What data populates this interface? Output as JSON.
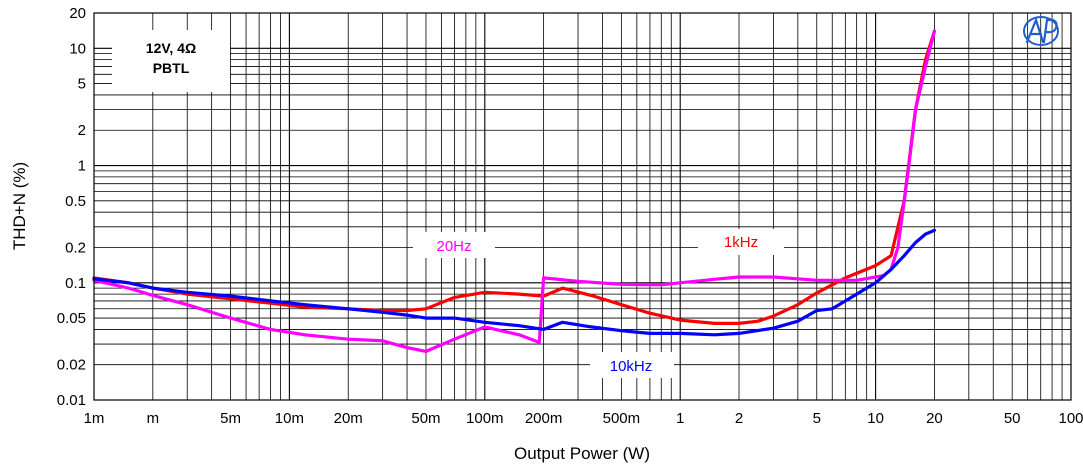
{
  "chart_data": {
    "type": "line",
    "title": "",
    "xlabel": "Output Power (W)",
    "ylabel": "THD+N (%)",
    "x_scale": "log",
    "y_scale": "log",
    "xlim": [
      0.001,
      100
    ],
    "ylim": [
      0.01,
      20
    ],
    "grid": true,
    "x_ticks": [
      {
        "value": 0.001,
        "label": "1m"
      },
      {
        "value": 0.002,
        "label": "m"
      },
      {
        "value": 0.005,
        "label": "5m"
      },
      {
        "value": 0.01,
        "label": "10m"
      },
      {
        "value": 0.02,
        "label": "20m"
      },
      {
        "value": 0.05,
        "label": "50m"
      },
      {
        "value": 0.1,
        "label": "100m"
      },
      {
        "value": 0.2,
        "label": "200m"
      },
      {
        "value": 0.5,
        "label": "500m"
      },
      {
        "value": 1,
        "label": "1"
      },
      {
        "value": 2,
        "label": "2"
      },
      {
        "value": 5,
        "label": "5"
      },
      {
        "value": 10,
        "label": "10"
      },
      {
        "value": 20,
        "label": "20"
      },
      {
        "value": 50,
        "label": "50"
      },
      {
        "value": 100,
        "label": "100"
      }
    ],
    "y_ticks": [
      {
        "value": 20,
        "label": "20"
      },
      {
        "value": 10,
        "label": "10"
      },
      {
        "value": 5,
        "label": "5"
      },
      {
        "value": 2,
        "label": "2"
      },
      {
        "value": 1,
        "label": "1"
      },
      {
        "value": 0.5,
        "label": "0.5"
      },
      {
        "value": 0.2,
        "label": "0.2"
      },
      {
        "value": 0.1,
        "label": "0.1"
      },
      {
        "value": 0.05,
        "label": "0.05"
      },
      {
        "value": 0.02,
        "label": "0.02"
      },
      {
        "value": 0.01,
        "label": "0.01"
      }
    ],
    "condition_box": {
      "line1": "12V, 4Ω",
      "line2": "PBTL"
    },
    "logo_text": "AP",
    "series": [
      {
        "name": "1kHz",
        "color": "#ff0000",
        "points": [
          [
            0.001,
            0.11
          ],
          [
            0.0015,
            0.1
          ],
          [
            0.002,
            0.09
          ],
          [
            0.003,
            0.08
          ],
          [
            0.005,
            0.073
          ],
          [
            0.008,
            0.067
          ],
          [
            0.012,
            0.062
          ],
          [
            0.02,
            0.06
          ],
          [
            0.03,
            0.058
          ],
          [
            0.04,
            0.058
          ],
          [
            0.05,
            0.06
          ],
          [
            0.07,
            0.075
          ],
          [
            0.1,
            0.083
          ],
          [
            0.15,
            0.08
          ],
          [
            0.2,
            0.077
          ],
          [
            0.25,
            0.09
          ],
          [
            0.35,
            0.078
          ],
          [
            0.5,
            0.065
          ],
          [
            0.7,
            0.055
          ],
          [
            1,
            0.048
          ],
          [
            1.5,
            0.045
          ],
          [
            2,
            0.045
          ],
          [
            2.5,
            0.047
          ],
          [
            3,
            0.052
          ],
          [
            4,
            0.065
          ],
          [
            5,
            0.082
          ],
          [
            7,
            0.11
          ],
          [
            10,
            0.14
          ],
          [
            12,
            0.17
          ],
          [
            14,
            0.5
          ],
          [
            16,
            3
          ],
          [
            18,
            8
          ],
          [
            20,
            14
          ]
        ]
      },
      {
        "name": "20Hz",
        "color": "#ff00ff",
        "points": [
          [
            0.001,
            0.105
          ],
          [
            0.0015,
            0.09
          ],
          [
            0.002,
            0.078
          ],
          [
            0.003,
            0.065
          ],
          [
            0.005,
            0.05
          ],
          [
            0.008,
            0.04
          ],
          [
            0.012,
            0.036
          ],
          [
            0.02,
            0.033
          ],
          [
            0.03,
            0.032
          ],
          [
            0.04,
            0.028
          ],
          [
            0.05,
            0.026
          ],
          [
            0.07,
            0.033
          ],
          [
            0.1,
            0.042
          ],
          [
            0.15,
            0.036
          ],
          [
            0.19,
            0.031
          ],
          [
            0.2,
            0.11
          ],
          [
            0.3,
            0.103
          ],
          [
            0.5,
            0.097
          ],
          [
            0.8,
            0.096
          ],
          [
            1,
            0.1
          ],
          [
            1.5,
            0.107
          ],
          [
            2,
            0.112
          ],
          [
            3,
            0.112
          ],
          [
            5,
            0.105
          ],
          [
            8,
            0.105
          ],
          [
            11,
            0.115
          ],
          [
            12,
            0.13
          ],
          [
            13,
            0.2
          ],
          [
            14,
            0.5
          ],
          [
            15,
            1.2
          ],
          [
            16,
            3
          ],
          [
            18,
            7
          ],
          [
            20,
            14
          ]
        ]
      },
      {
        "name": "10kHz",
        "color": "#0000ff",
        "points": [
          [
            0.001,
            0.108
          ],
          [
            0.0015,
            0.1
          ],
          [
            0.002,
            0.09
          ],
          [
            0.003,
            0.083
          ],
          [
            0.005,
            0.077
          ],
          [
            0.008,
            0.07
          ],
          [
            0.012,
            0.065
          ],
          [
            0.02,
            0.06
          ],
          [
            0.03,
            0.056
          ],
          [
            0.04,
            0.053
          ],
          [
            0.05,
            0.05
          ],
          [
            0.07,
            0.05
          ],
          [
            0.1,
            0.046
          ],
          [
            0.15,
            0.043
          ],
          [
            0.2,
            0.04
          ],
          [
            0.25,
            0.046
          ],
          [
            0.35,
            0.042
          ],
          [
            0.5,
            0.039
          ],
          [
            0.7,
            0.037
          ],
          [
            1,
            0.037
          ],
          [
            1.5,
            0.036
          ],
          [
            2,
            0.037
          ],
          [
            3,
            0.041
          ],
          [
            4,
            0.047
          ],
          [
            5,
            0.058
          ],
          [
            6,
            0.06
          ],
          [
            8,
            0.08
          ],
          [
            10,
            0.1
          ],
          [
            12,
            0.13
          ],
          [
            14,
            0.17
          ],
          [
            16,
            0.22
          ],
          [
            18,
            0.26
          ],
          [
            20,
            0.28
          ]
        ]
      }
    ],
    "series_labels": [
      {
        "series": "20Hz",
        "text": "20Hz"
      },
      {
        "series": "1kHz",
        "text": "1kHz"
      },
      {
        "series": "10kHz",
        "text": "10kHz"
      }
    ]
  }
}
